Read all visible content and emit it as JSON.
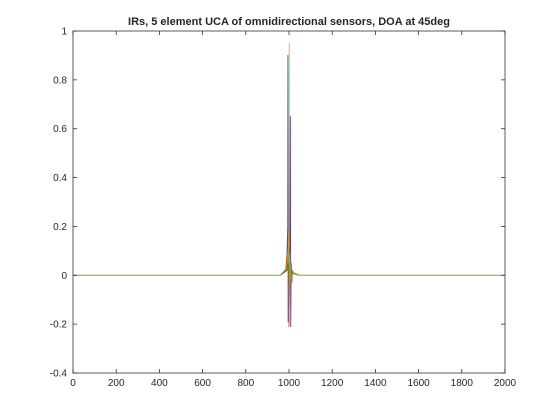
{
  "chart_data": {
    "type": "line",
    "title": "IRs, 5 element UCA of omnidirectional sensors, DOA at 45deg",
    "xlabel": "",
    "ylabel": "",
    "xlim": [
      0,
      2000
    ],
    "ylim": [
      -0.4,
      1
    ],
    "xticks": [
      0,
      200,
      400,
      600,
      800,
      1000,
      1200,
      1400,
      1600,
      1800,
      2000
    ],
    "yticks": [
      -0.4,
      -0.2,
      0,
      0.2,
      0.4,
      0.6,
      0.8,
      1
    ],
    "grid": false,
    "legend": "none",
    "series": [
      {
        "color": "#0072BD",
        "x": [
          960,
          985,
          990,
          994,
          995,
          996,
          998,
          1002,
          1006,
          1010,
          1040
        ],
        "y": [
          0.0,
          0.02,
          0.06,
          0.2,
          0.9,
          -0.19,
          -0.05,
          0.03,
          -0.02,
          0.01,
          0.0
        ]
      },
      {
        "color": "#D95319",
        "x": [
          960,
          985,
          990,
          998,
          1000,
          1001,
          1003,
          1006,
          1010,
          1015,
          1040
        ],
        "y": [
          0.0,
          0.02,
          0.08,
          0.12,
          -0.21,
          0.1,
          -0.05,
          0.03,
          -0.02,
          0.01,
          0.0
        ]
      },
      {
        "color": "#EDB120",
        "x": [
          960,
          990,
          996,
          1000,
          1001,
          1003,
          1004,
          1007,
          1010,
          1015,
          1040
        ],
        "y": [
          0.0,
          0.02,
          0.06,
          0.2,
          0.95,
          -0.12,
          0.03,
          -0.03,
          0.02,
          0.01,
          0.0
        ]
      },
      {
        "color": "#7E2F8E",
        "x": [
          960,
          990,
          998,
          1004,
          1006,
          1008,
          1010,
          1013,
          1016,
          1020,
          1050
        ],
        "y": [
          0.0,
          0.02,
          0.06,
          0.1,
          0.65,
          -0.21,
          0.05,
          -0.03,
          0.02,
          0.01,
          0.0
        ]
      },
      {
        "color": "#77AC30",
        "x": [
          960,
          990,
          994,
          997,
          1000,
          1003,
          1006,
          1010,
          1015,
          1020,
          1050
        ],
        "y": [
          0.0,
          0.03,
          0.08,
          0.05,
          0.12,
          -0.08,
          0.05,
          -0.03,
          0.02,
          0.01,
          0.0
        ]
      }
    ]
  }
}
